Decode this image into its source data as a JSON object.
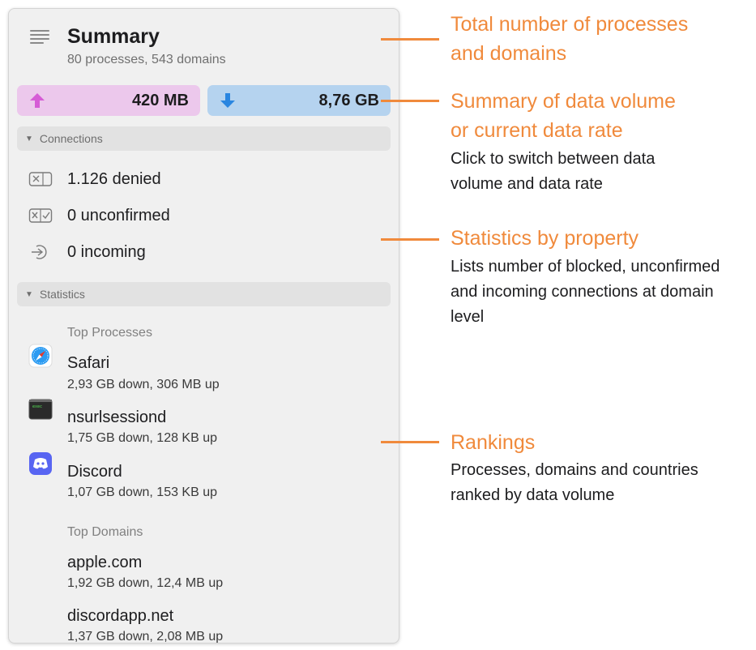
{
  "summary": {
    "title": "Summary",
    "subtitle": "80 processes, 543 domains",
    "upload": "420 MB",
    "download": "8,76 GB",
    "upload_color": "#ecc8ec",
    "download_color": "#b5d3ef"
  },
  "connections": {
    "header": "Connections",
    "denied": "1.126 denied",
    "unconfirmed": "0 unconfirmed",
    "incoming": "0 incoming"
  },
  "statistics": {
    "header": "Statistics",
    "top_processes_label": "Top Processes",
    "processes": [
      {
        "name": "Safari",
        "detail": "2,93 GB down, 306 MB up",
        "icon": "safari-icon"
      },
      {
        "name": "nsurlsessiond",
        "detail": "1,75 GB down, 128 KB up",
        "icon": "terminal-icon"
      },
      {
        "name": "Discord",
        "detail": "1,07 GB down, 153 KB up",
        "icon": "discord-icon"
      }
    ],
    "top_domains_label": "Top Domains",
    "domains": [
      {
        "name": "apple.com",
        "detail": "1,92 GB down, 12,4 MB up"
      },
      {
        "name": "discordapp.net",
        "detail": "1,37 GB down, 2,08 MB up"
      }
    ]
  },
  "annotations": {
    "accent_color": "#f08a3c",
    "a1_title_line1": "Total number of processes",
    "a1_title_line2": "and domains",
    "a2_title_line1": "Summary of data volume",
    "a2_title_line2": "or current data rate",
    "a2_desc_line1": "Click to switch between data",
    "a2_desc_line2": "volume and data rate",
    "a3_title": "Statistics by property",
    "a3_desc_line1": "Lists number of blocked, unconfirmed",
    "a3_desc_line2": "and incoming connections at domain",
    "a3_desc_line3": "level",
    "a4_title": "Rankings",
    "a4_desc_line1": "Processes, domains and countries",
    "a4_desc_line2": "ranked by data volume"
  }
}
